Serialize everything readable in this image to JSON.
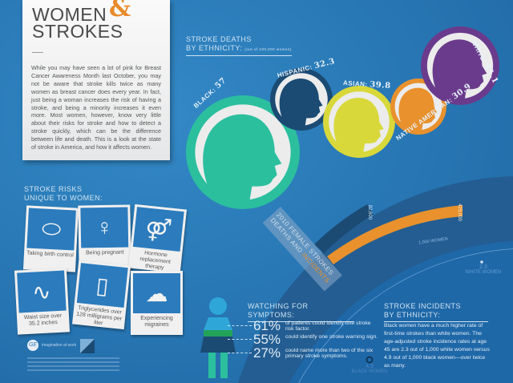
{
  "header": {
    "title_line1": "WOMEN",
    "ampersand": "&",
    "title_line2": "STROKES",
    "intro": "While you may have seen a lot of pink for Breast Cancer Awareness Month last October, you may not be aware that stroke kills twice as many women as breast cancer does every year. In fact, just being a woman increases the risk of having a stroke, and being a minority increases it even more. Most women, however, know very little about their risks for stroke and how to detect a stroke quickly, which can be the difference between life and death. This is a look at the state of stroke in America, and how it affects women."
  },
  "deaths": {
    "title_line1": "STROKE DEATHS",
    "title_line2": "BY ETHNICITY:",
    "note": "(out of 100,000 women)",
    "items": [
      {
        "label": "BLACK:",
        "value": "57",
        "color": "#2bbf9e"
      },
      {
        "label": "HISPANIC:",
        "value": "32.3",
        "color": "#1b4a73"
      },
      {
        "label": "ASIAN:",
        "value": "39.8",
        "color": "#d8d83a"
      },
      {
        "label": "NATIVE AMERICAN:",
        "value": "30.9",
        "color": "#e8912d"
      },
      {
        "label": "WHITE:",
        "value": "41.1",
        "color": "#6a3b8c"
      }
    ]
  },
  "risks": {
    "title_line1": "STROKE RISKS",
    "title_line2": "UNIQUE TO WOMEN:",
    "items": [
      {
        "label": "Taking birth control",
        "icon": "pills-icon"
      },
      {
        "label": "Being pregnant",
        "icon": "pregnant-woman-icon"
      },
      {
        "label": "Hormone replacement therapy",
        "icon": "gender-symbols-icon"
      },
      {
        "label": "Waist size over 35.2 inches",
        "icon": "tape-measure-icon"
      },
      {
        "label": "Triglycerides over 128 milligrams per liter",
        "icon": "iv-bag-icon"
      },
      {
        "label": "Experiencing migraines",
        "icon": "brain-icon"
      }
    ]
  },
  "incidents_2010": {
    "title_line1": "2010 FEMALE STROKES",
    "title_line2_a": "DEATHS AND ",
    "title_line2_b": "INCIDENTS",
    "deaths_value": "82,600",
    "incidents_value": "425,000",
    "deaths_color": "#1b4a73",
    "incidents_color": "#e8912d"
  },
  "scale": {
    "label": "1,000 WOMEN",
    "white_value": "2.3",
    "white_label": "WHITE WOMEN",
    "black_value": "4.9",
    "black_label": "BLACK WOMEN"
  },
  "symptoms": {
    "title_line1": "WATCHING FOR",
    "title_line2": "SYMPTOMS:",
    "items": [
      {
        "pct": "61%",
        "text": "of patients could identify one stroke risk factor."
      },
      {
        "pct": "55%",
        "text": "could identify one stroke warning sign."
      },
      {
        "pct": "27%",
        "text": "could name more than two of the six primary stroke symptoms."
      }
    ]
  },
  "incidence": {
    "title_line1": "STROKE INCIDENTS",
    "title_line2": "BY ETHNICITY:",
    "text": "Black women have a much higher rate of first-time strokes than white women. The age-adjusted stroke incidence rates at age 45 are 2.3 out of 1,000 white women versus 4.9 out of 1,000 black women—over twice as many."
  },
  "footer": {
    "tagline": "imagination at work"
  }
}
